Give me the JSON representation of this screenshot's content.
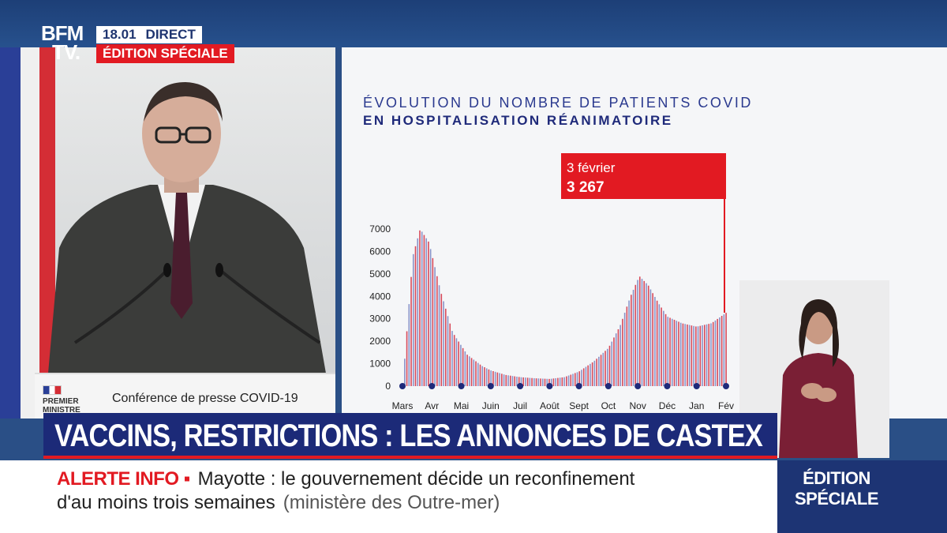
{
  "broadcast": {
    "logo": {
      "line1": "BFM",
      "line2": "TV."
    },
    "time": "18.01",
    "live_label": "DIRECT",
    "edition_badge": "ÉDITION SPÉCIALE"
  },
  "podium": {
    "logo_line1": "PREMIER",
    "logo_line2": "MINISTRE",
    "text": "Conférence de presse COVID-19"
  },
  "chart": {
    "title_line1": "ÉVOLUTION DU NOMBRE DE PATIENTS COVID",
    "title_line2": "EN HOSPITALISATION RÉANIMATOIRE",
    "callout_date": "3 février",
    "callout_value": "3 267"
  },
  "chart_data": {
    "type": "bar",
    "title": "ÉVOLUTION DU NOMBRE DE PATIENTS COVID EN HOSPITALISATION RÉANIMATOIRE",
    "xlabel": "",
    "ylabel": "",
    "ylim": [
      0,
      7000
    ],
    "yticks": [
      0,
      1000,
      2000,
      3000,
      4000,
      5000,
      6000,
      7000
    ],
    "categories": [
      "Mars",
      "Avr",
      "Mai",
      "Juin",
      "Juil",
      "Août",
      "Sept",
      "Oct",
      "Nov",
      "Déc",
      "Jan",
      "Fév"
    ],
    "curve_points": [
      [
        0,
        0
      ],
      [
        0.15,
        2500
      ],
      [
        0.35,
        5800
      ],
      [
        0.6,
        7000
      ],
      [
        0.9,
        6400
      ],
      [
        1.3,
        4200
      ],
      [
        1.7,
        2400
      ],
      [
        2.2,
        1400
      ],
      [
        2.7,
        900
      ],
      [
        3.0,
        700
      ],
      [
        3.5,
        500
      ],
      [
        4.0,
        400
      ],
      [
        4.5,
        350
      ],
      [
        5.0,
        320
      ],
      [
        5.5,
        400
      ],
      [
        6.0,
        650
      ],
      [
        6.5,
        1100
      ],
      [
        7.0,
        1700
      ],
      [
        7.4,
        2700
      ],
      [
        7.75,
        4000
      ],
      [
        8.05,
        4900
      ],
      [
        8.35,
        4500
      ],
      [
        8.7,
        3700
      ],
      [
        9.0,
        3100
      ],
      [
        9.5,
        2800
      ],
      [
        10.0,
        2650
      ],
      [
        10.5,
        2800
      ],
      [
        11.0,
        3267
      ]
    ],
    "highlight": {
      "label": "3 février",
      "value": 3267
    },
    "colors": {
      "bar_a": "#d84a5a",
      "bar_b": "#8a93c8",
      "dot": "#1f2a7a",
      "callout": "#e21a22"
    }
  },
  "headline": "VACCINS, RESTRICTIONS : LES ANNONCES DE CASTEX",
  "ticker": {
    "alert": "ALERTE INFO ▪",
    "line1": "Mayotte : le gouvernement décide un reconfinement",
    "line2": "d'au moins trois semaines",
    "source": "(ministère des Outre-mer)",
    "right_line1": "ÉDITION",
    "right_line2": "SPÉCIALE"
  }
}
